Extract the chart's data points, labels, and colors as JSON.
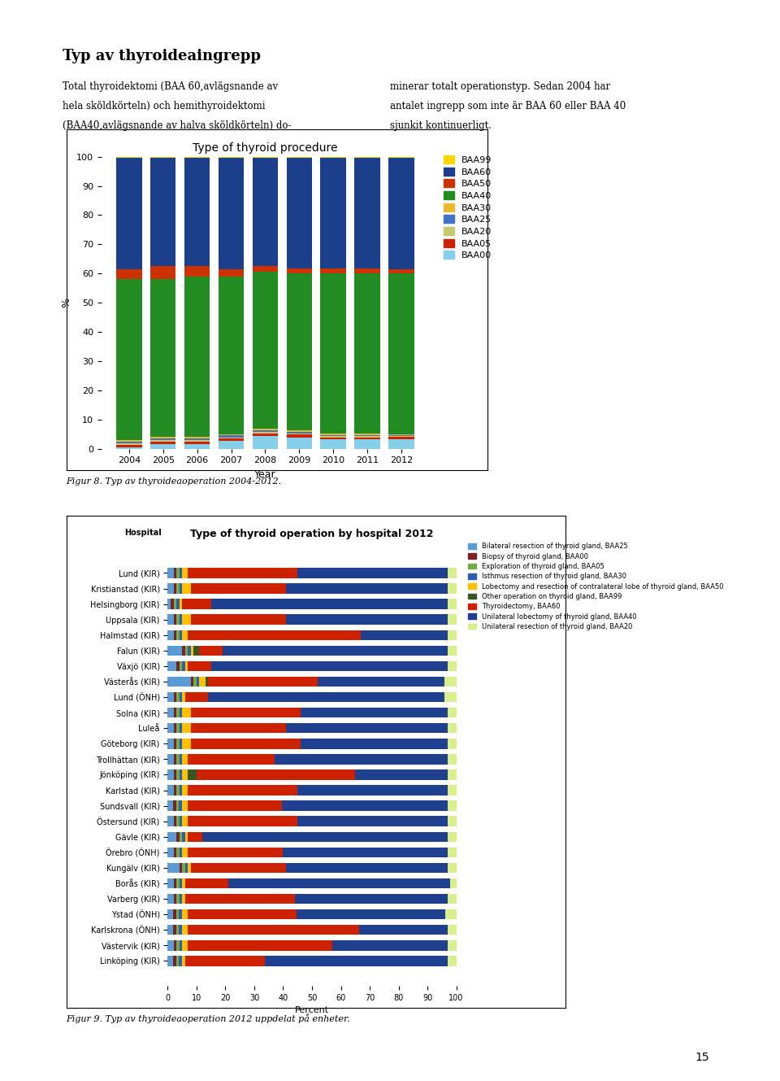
{
  "page_title": "Typ av thyroideaingrepp",
  "page_text_left": "Total thyroidektomi (BAA 60,avlägsnande av\nhela sköldkörteln) och hemithyroidektomi\n(BAA40,avlägsnande av halva sköldkörteln) do-",
  "page_text_right": "minerar totalt operationstyp. Sedan 2004 har\nantalet ingrepp som inte är BAA 60 eller BAA 40\nsjunkit kontinuerligt.",
  "fig1_title": "Type of thyroid procedure",
  "fig1_ylabel": "%",
  "fig1_xlabel": "Year",
  "fig1_years": [
    2004,
    2005,
    2006,
    2007,
    2008,
    2009,
    2010,
    2011,
    2012
  ],
  "fig1_legend_labels": [
    "BAA99",
    "BAA60",
    "BAA50",
    "BAA40",
    "BAA30",
    "BAA25",
    "BAA20",
    "BAA05",
    "BAA00"
  ],
  "fig1_stack_order": [
    "BAA00",
    "BAA05",
    "BAA20",
    "BAA25",
    "BAA30",
    "BAA40",
    "BAA50",
    "BAA60",
    "BAA99"
  ],
  "fig1_colors": {
    "BAA99": "#FFD700",
    "BAA60": "#1B3F8B",
    "BAA50": "#CC3300",
    "BAA40": "#228B22",
    "BAA30": "#E8B830",
    "BAA25": "#4472C4",
    "BAA20": "#C8C870",
    "BAA05": "#CC2200",
    "BAA00": "#87CEEB"
  },
  "fig1_data": {
    "BAA99": [
      0.5,
      0.5,
      0.5,
      0.5,
      0.3,
      0.3,
      0.3,
      0.3,
      0.5
    ],
    "BAA60": [
      38,
      37,
      37,
      38,
      37,
      38,
      38,
      38,
      38
    ],
    "BAA50": [
      3.5,
      4.5,
      3.5,
      2.5,
      2.0,
      1.5,
      1.5,
      1.5,
      1.5
    ],
    "BAA40": [
      55,
      54,
      55,
      54,
      54,
      54,
      55,
      55,
      55
    ],
    "BAA30": [
      0.5,
      0.5,
      0.5,
      0.5,
      0.5,
      0.5,
      0.5,
      0.5,
      0.3
    ],
    "BAA25": [
      0.8,
      0.7,
      0.7,
      0.6,
      0.6,
      0.6,
      0.5,
      0.5,
      0.5
    ],
    "BAA20": [
      0.3,
      0.3,
      0.3,
      0.3,
      0.3,
      0.3,
      0.3,
      0.3,
      0.2
    ],
    "BAA05": [
      0.9,
      1.0,
      1.0,
      1.0,
      0.9,
      0.9,
      0.8,
      0.8,
      0.7
    ],
    "BAA00": [
      0.5,
      1.5,
      1.5,
      2.6,
      4.4,
      3.9,
      3.1,
      3.1,
      3.3
    ]
  },
  "fig1_caption": "Figur 8. Typ av thyroideaoperation 2004-2012.",
  "fig2_title": "Type of thyroid operation by hospital 2012",
  "fig2_xlabel": "Percent",
  "fig2_hospitals": [
    "Lund (KIR)",
    "Kristianstad (KIR)",
    "Helsingborg (KIR)",
    "Uppsala (KIR)",
    "Halmstad (KIR)",
    "Falun (KIR)",
    "Växjö (KIR)",
    "Västerås (KIR)",
    "Lund (ÖNH)",
    "Solna (KIR)",
    "Luleå",
    "Göteborg (KIR)",
    "Trollhättan (KIR)",
    "Jönköping (KIR)",
    "Karlstad (KIR)",
    "Sundsvall (KIR)",
    "Östersund (KIR)",
    "Gävle (KIR)",
    "Örebro (ÖNH)",
    "Kungälv (KIR)",
    "Borås (KIR)",
    "Varberg (KIR)",
    "Ystad (ÖNH)",
    "Karlskrona (ÖNH)",
    "Västervik (KIR)",
    "Linköping (KIR)"
  ],
  "fig2_legend_labels": [
    "Bilateral resection of thyroid gland, BAA25",
    "Biopsy of thyroid gland, BAA00",
    "Exploration of thyroid gland, BAA05",
    "Isthmus resection of thyroid gland, BAA30",
    "Lobectomy and resection of contralateral lobe of thyroid gland, BAA50",
    "Other operation on thyroid gland, BAA99",
    "Thyroidectomy, BAA60",
    "Unilateral lobectomy of thyroid gland, BAA40",
    "Unilateral resection of thyroid gland, BAA20"
  ],
  "fig2_colors": [
    "#5B9BD5",
    "#7B2222",
    "#70AD47",
    "#2E5FAA",
    "#FFC000",
    "#375623",
    "#CC2200",
    "#1F3F8F",
    "#D9EF8B"
  ],
  "fig2_hospital_data": [
    [
      2,
      1,
      1,
      1,
      2,
      0,
      38,
      52,
      3
    ],
    [
      2,
      1,
      1,
      1,
      3,
      0,
      33,
      56,
      3
    ],
    [
      1,
      1,
      1,
      1,
      1,
      0,
      10,
      82,
      3
    ],
    [
      2,
      1,
      1,
      1,
      3,
      0,
      33,
      56,
      3
    ],
    [
      2,
      1,
      1,
      1,
      2,
      0,
      60,
      30,
      3
    ],
    [
      5,
      1,
      1,
      1,
      1,
      2,
      8,
      78,
      3
    ],
    [
      3,
      1,
      1,
      1,
      1,
      0,
      8,
      82,
      3
    ],
    [
      8,
      1,
      1,
      1,
      2,
      1,
      38,
      44,
      4
    ],
    [
      2,
      1,
      1,
      1,
      1,
      0,
      8,
      82,
      4
    ],
    [
      2,
      1,
      1,
      1,
      3,
      0,
      38,
      51,
      3
    ],
    [
      2,
      1,
      1,
      1,
      3,
      0,
      33,
      56,
      3
    ],
    [
      2,
      1,
      1,
      1,
      3,
      0,
      38,
      51,
      3
    ],
    [
      2,
      1,
      1,
      1,
      2,
      0,
      30,
      60,
      3
    ],
    [
      2,
      1,
      1,
      1,
      2,
      3,
      55,
      32,
      3
    ],
    [
      2,
      1,
      1,
      1,
      2,
      0,
      38,
      52,
      3
    ],
    [
      2,
      1,
      1,
      1,
      2,
      0,
      33,
      58,
      3
    ],
    [
      2,
      1,
      1,
      1,
      2,
      0,
      38,
      52,
      3
    ],
    [
      3,
      1,
      1,
      1,
      1,
      0,
      5,
      85,
      3
    ],
    [
      2,
      1,
      1,
      1,
      2,
      0,
      33,
      57,
      3
    ],
    [
      4,
      1,
      1,
      1,
      1,
      0,
      33,
      56,
      3
    ],
    [
      2,
      1,
      1,
      1,
      1,
      0,
      15,
      77,
      2
    ],
    [
      2,
      1,
      1,
      1,
      1,
      0,
      38,
      53,
      3
    ],
    [
      2,
      1,
      1,
      1,
      2,
      0,
      38,
      52,
      4
    ],
    [
      2,
      1,
      1,
      1,
      2,
      0,
      60,
      31,
      3
    ],
    [
      2,
      1,
      1,
      1,
      2,
      0,
      50,
      40,
      3
    ],
    [
      2,
      1,
      1,
      1,
      1,
      0,
      28,
      64,
      3
    ]
  ],
  "fig2_caption": "Figur 9. Typ av thyroideaoperation 2012 uppdelat på enheter.",
  "page_number": "15"
}
